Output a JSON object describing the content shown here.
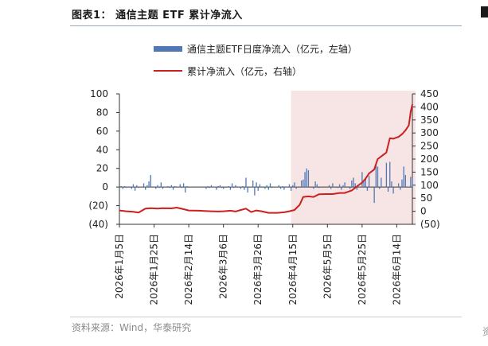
{
  "header": {
    "title": "图表1：  通信主题 ETF 累计净流入"
  },
  "legend": {
    "bar_label": "通信主题ETF日度净流入（亿元，左轴）",
    "line_label": "累计净流入（亿元，右轴）"
  },
  "footer": {
    "source": "资料来源：Wind，华泰研究"
  },
  "chart_data": {
    "type": "bar+line",
    "left_axis": {
      "ylim": [
        -40,
        100
      ],
      "ticks": [
        100,
        80,
        60,
        40,
        20,
        0,
        -20,
        -40
      ],
      "tick_labels": [
        "100",
        "80",
        "60",
        "40",
        "20",
        "0",
        "(20)",
        "(40)"
      ]
    },
    "right_axis": {
      "ylim": [
        -50,
        450
      ],
      "ticks": [
        450,
        400,
        350,
        300,
        250,
        200,
        150,
        100,
        50,
        0,
        -50
      ],
      "tick_labels": [
        "450",
        "400",
        "350",
        "300",
        "250",
        "200",
        "150",
        "100",
        "50",
        "0",
        "(50)"
      ]
    },
    "x_range": [
      "2026-01-05",
      "2026-06-23"
    ],
    "x_tick_labels": [
      "2026年1月5日",
      "2026年1月25日",
      "2026年2月14日",
      "2026年3月6日",
      "2026年3月26日",
      "2026年4月15日",
      "2026年5月5日",
      "2026年5月25日",
      "2026年6月14日"
    ],
    "x_tick_dates": [
      "2026-01-05",
      "2026-01-25",
      "2026-02-14",
      "2026-03-06",
      "2026-03-26",
      "2026-04-15",
      "2026-05-05",
      "2026-05-25",
      "2026-06-14"
    ],
    "highlight_range": [
      "2026-04-14",
      "2026-06-23"
    ],
    "highlight_color": "#f7e4e4",
    "bar_color": "#4f78b5",
    "line_color": "#cc1f1f",
    "series": [
      {
        "name": "通信主题ETF日度净流入（亿元，左轴）",
        "kind": "bar",
        "axis": "left",
        "points": [
          [
            "2026-01-05",
            -1
          ],
          [
            "2026-01-06",
            1
          ],
          [
            "2026-01-07",
            -2
          ],
          [
            "2026-01-08",
            1
          ],
          [
            "2026-01-09",
            -1
          ],
          [
            "2026-01-12",
            -2
          ],
          [
            "2026-01-13",
            3
          ],
          [
            "2026-01-14",
            -4
          ],
          [
            "2026-01-15",
            2
          ],
          [
            "2026-01-16",
            -1
          ],
          [
            "2026-01-19",
            4
          ],
          [
            "2026-01-20",
            -3
          ],
          [
            "2026-01-21",
            2
          ],
          [
            "2026-01-22",
            6
          ],
          [
            "2026-01-23",
            13
          ],
          [
            "2026-01-26",
            -2
          ],
          [
            "2026-01-27",
            2
          ],
          [
            "2026-01-28",
            -1
          ],
          [
            "2026-01-29",
            5
          ],
          [
            "2026-01-30",
            -2
          ],
          [
            "2026-02-02",
            1
          ],
          [
            "2026-02-03",
            -1
          ],
          [
            "2026-02-04",
            2
          ],
          [
            "2026-02-05",
            -3
          ],
          [
            "2026-02-06",
            1
          ],
          [
            "2026-02-09",
            3
          ],
          [
            "2026-02-10",
            -1
          ],
          [
            "2026-02-11",
            4
          ],
          [
            "2026-02-12",
            -6
          ],
          [
            "2026-02-13",
            1
          ],
          [
            "2026-02-24",
            -2
          ],
          [
            "2026-02-25",
            1
          ],
          [
            "2026-02-26",
            -1
          ],
          [
            "2026-02-27",
            2
          ],
          [
            "2026-03-02",
            -3
          ],
          [
            "2026-03-03",
            1
          ],
          [
            "2026-03-04",
            2
          ],
          [
            "2026-03-05",
            -1
          ],
          [
            "2026-03-06",
            -2
          ],
          [
            "2026-03-09",
            1
          ],
          [
            "2026-03-10",
            -3
          ],
          [
            "2026-03-11",
            4
          ],
          [
            "2026-03-12",
            -1
          ],
          [
            "2026-03-13",
            2
          ],
          [
            "2026-03-16",
            -2
          ],
          [
            "2026-03-17",
            1
          ],
          [
            "2026-03-18",
            -3
          ],
          [
            "2026-03-19",
            10
          ],
          [
            "2026-03-20",
            -6
          ],
          [
            "2026-03-23",
            7
          ],
          [
            "2026-03-24",
            -9
          ],
          [
            "2026-03-25",
            5
          ],
          [
            "2026-03-26",
            -4
          ],
          [
            "2026-03-27",
            3
          ],
          [
            "2026-03-30",
            -2
          ],
          [
            "2026-03-31",
            2
          ],
          [
            "2026-04-01",
            -3
          ],
          [
            "2026-04-02",
            4
          ],
          [
            "2026-04-03",
            -1
          ],
          [
            "2026-04-07",
            2
          ],
          [
            "2026-04-08",
            -2
          ],
          [
            "2026-04-09",
            1
          ],
          [
            "2026-04-10",
            -3
          ],
          [
            "2026-04-13",
            3
          ],
          [
            "2026-04-14",
            -4
          ],
          [
            "2026-04-15",
            2
          ],
          [
            "2026-04-16",
            5
          ],
          [
            "2026-04-17",
            -2
          ],
          [
            "2026-04-20",
            7
          ],
          [
            "2026-04-21",
            8
          ],
          [
            "2026-04-22",
            16
          ],
          [
            "2026-04-23",
            20
          ],
          [
            "2026-04-24",
            18
          ],
          [
            "2026-04-27",
            -2
          ],
          [
            "2026-04-28",
            6
          ],
          [
            "2026-04-29",
            3
          ],
          [
            "2026-04-30",
            -1
          ],
          [
            "2026-05-06",
            2
          ],
          [
            "2026-05-07",
            -2
          ],
          [
            "2026-05-08",
            4
          ],
          [
            "2026-05-11",
            -1
          ],
          [
            "2026-05-12",
            3
          ],
          [
            "2026-05-13",
            -3
          ],
          [
            "2026-05-14",
            2
          ],
          [
            "2026-05-15",
            5
          ],
          [
            "2026-05-18",
            -2
          ],
          [
            "2026-05-19",
            7
          ],
          [
            "2026-05-20",
            10
          ],
          [
            "2026-05-21",
            4
          ],
          [
            "2026-05-22",
            -3
          ],
          [
            "2026-05-25",
            16
          ],
          [
            "2026-05-26",
            6
          ],
          [
            "2026-05-27",
            9
          ],
          [
            "2026-05-28",
            -4
          ],
          [
            "2026-05-29",
            12
          ],
          [
            "2026-06-01",
            -17
          ],
          [
            "2026-06-02",
            24
          ],
          [
            "2026-06-03",
            22
          ],
          [
            "2026-06-04",
            -2
          ],
          [
            "2026-06-05",
            10
          ],
          [
            "2026-06-08",
            26
          ],
          [
            "2026-06-09",
            -5
          ],
          [
            "2026-06-10",
            27
          ],
          [
            "2026-06-11",
            6
          ],
          [
            "2026-06-12",
            -7
          ],
          [
            "2026-06-15",
            4
          ],
          [
            "2026-06-16",
            -3
          ],
          [
            "2026-06-17",
            8
          ],
          [
            "2026-06-18",
            22
          ],
          [
            "2026-06-19",
            13
          ],
          [
            "2026-06-22",
            11
          ],
          [
            "2026-06-23",
            9
          ]
        ]
      },
      {
        "name": "累计净流入（亿元，右轴）",
        "kind": "line",
        "axis": "right",
        "points": [
          [
            "2026-01-05",
            3
          ],
          [
            "2026-01-09",
            0
          ],
          [
            "2026-01-13",
            -2
          ],
          [
            "2026-01-16",
            -5
          ],
          [
            "2026-01-20",
            10
          ],
          [
            "2026-01-23",
            12
          ],
          [
            "2026-01-27",
            10
          ],
          [
            "2026-01-30",
            12
          ],
          [
            "2026-02-04",
            11
          ],
          [
            "2026-02-07",
            14
          ],
          [
            "2026-02-11",
            8
          ],
          [
            "2026-02-14",
            3
          ],
          [
            "2026-02-20",
            2
          ],
          [
            "2026-02-27",
            0
          ],
          [
            "2026-03-03",
            -1
          ],
          [
            "2026-03-06",
            0
          ],
          [
            "2026-03-10",
            2
          ],
          [
            "2026-03-13",
            -1
          ],
          [
            "2026-03-16",
            5
          ],
          [
            "2026-03-19",
            10
          ],
          [
            "2026-03-22",
            -3
          ],
          [
            "2026-03-25",
            3
          ],
          [
            "2026-03-28",
            0
          ],
          [
            "2026-04-01",
            -6
          ],
          [
            "2026-04-06",
            -6
          ],
          [
            "2026-04-10",
            -4
          ],
          [
            "2026-04-13",
            0
          ],
          [
            "2026-04-16",
            5
          ],
          [
            "2026-04-19",
            25
          ],
          [
            "2026-04-21",
            55
          ],
          [
            "2026-04-24",
            57
          ],
          [
            "2026-04-27",
            55
          ],
          [
            "2026-04-30",
            65
          ],
          [
            "2026-05-04",
            66
          ],
          [
            "2026-05-08",
            66
          ],
          [
            "2026-05-12",
            70
          ],
          [
            "2026-05-15",
            70
          ],
          [
            "2026-05-19",
            80
          ],
          [
            "2026-05-22",
            95
          ],
          [
            "2026-05-25",
            110
          ],
          [
            "2026-05-27",
            125
          ],
          [
            "2026-05-29",
            145
          ],
          [
            "2026-06-01",
            160
          ],
          [
            "2026-06-03",
            200
          ],
          [
            "2026-06-05",
            210
          ],
          [
            "2026-06-08",
            225
          ],
          [
            "2026-06-10",
            280
          ],
          [
            "2026-06-12",
            278
          ],
          [
            "2026-06-15",
            285
          ],
          [
            "2026-06-17",
            295
          ],
          [
            "2026-06-19",
            310
          ],
          [
            "2026-06-21",
            330
          ],
          [
            "2026-06-22",
            380
          ],
          [
            "2026-06-23",
            410
          ]
        ]
      }
    ]
  }
}
